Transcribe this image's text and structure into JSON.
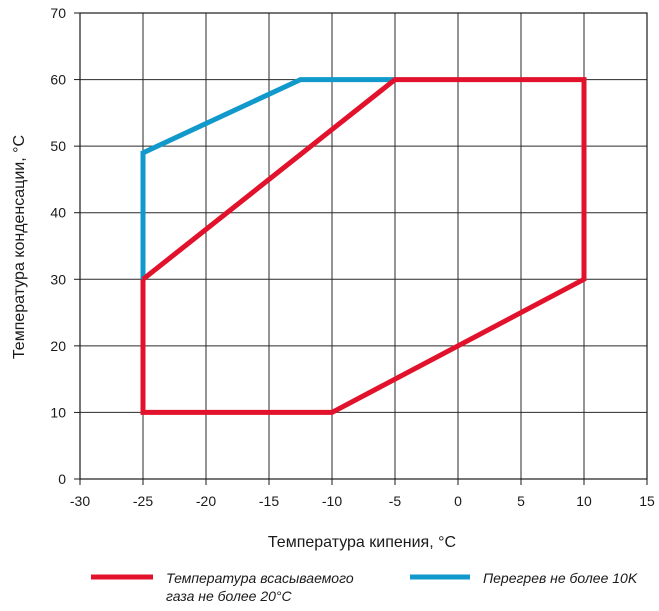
{
  "chart_data": {
    "type": "line",
    "xlabel": "Температура кипения, °C",
    "ylabel": "Температура конденсации, °C",
    "xlim": [
      -30,
      15
    ],
    "ylim": [
      0,
      70
    ],
    "x_ticks": [
      "-30",
      "-25",
      "-20",
      "-15",
      "-10",
      "-5",
      "0",
      "5",
      "10",
      "15"
    ],
    "y_ticks": [
      "0",
      "10",
      "20",
      "30",
      "40",
      "50",
      "60",
      "70"
    ],
    "grid": true,
    "legend_position": "bottom",
    "series": [
      {
        "name_lines": [
          "Температура всасываемого",
          "газа не более 20°C"
        ],
        "color": "#e2122c",
        "points": [
          [
            -25,
            30
          ],
          [
            -25,
            10
          ],
          [
            -10,
            10
          ],
          [
            10,
            30
          ],
          [
            10,
            60
          ],
          [
            -5,
            60
          ],
          [
            -25,
            30
          ]
        ]
      },
      {
        "name_lines": [
          "Перегрев не более 10K"
        ],
        "color": "#1199cc",
        "points": [
          [
            -25,
            30
          ],
          [
            -25,
            49
          ],
          [
            -12.5,
            60
          ],
          [
            -5,
            60
          ]
        ]
      }
    ]
  }
}
